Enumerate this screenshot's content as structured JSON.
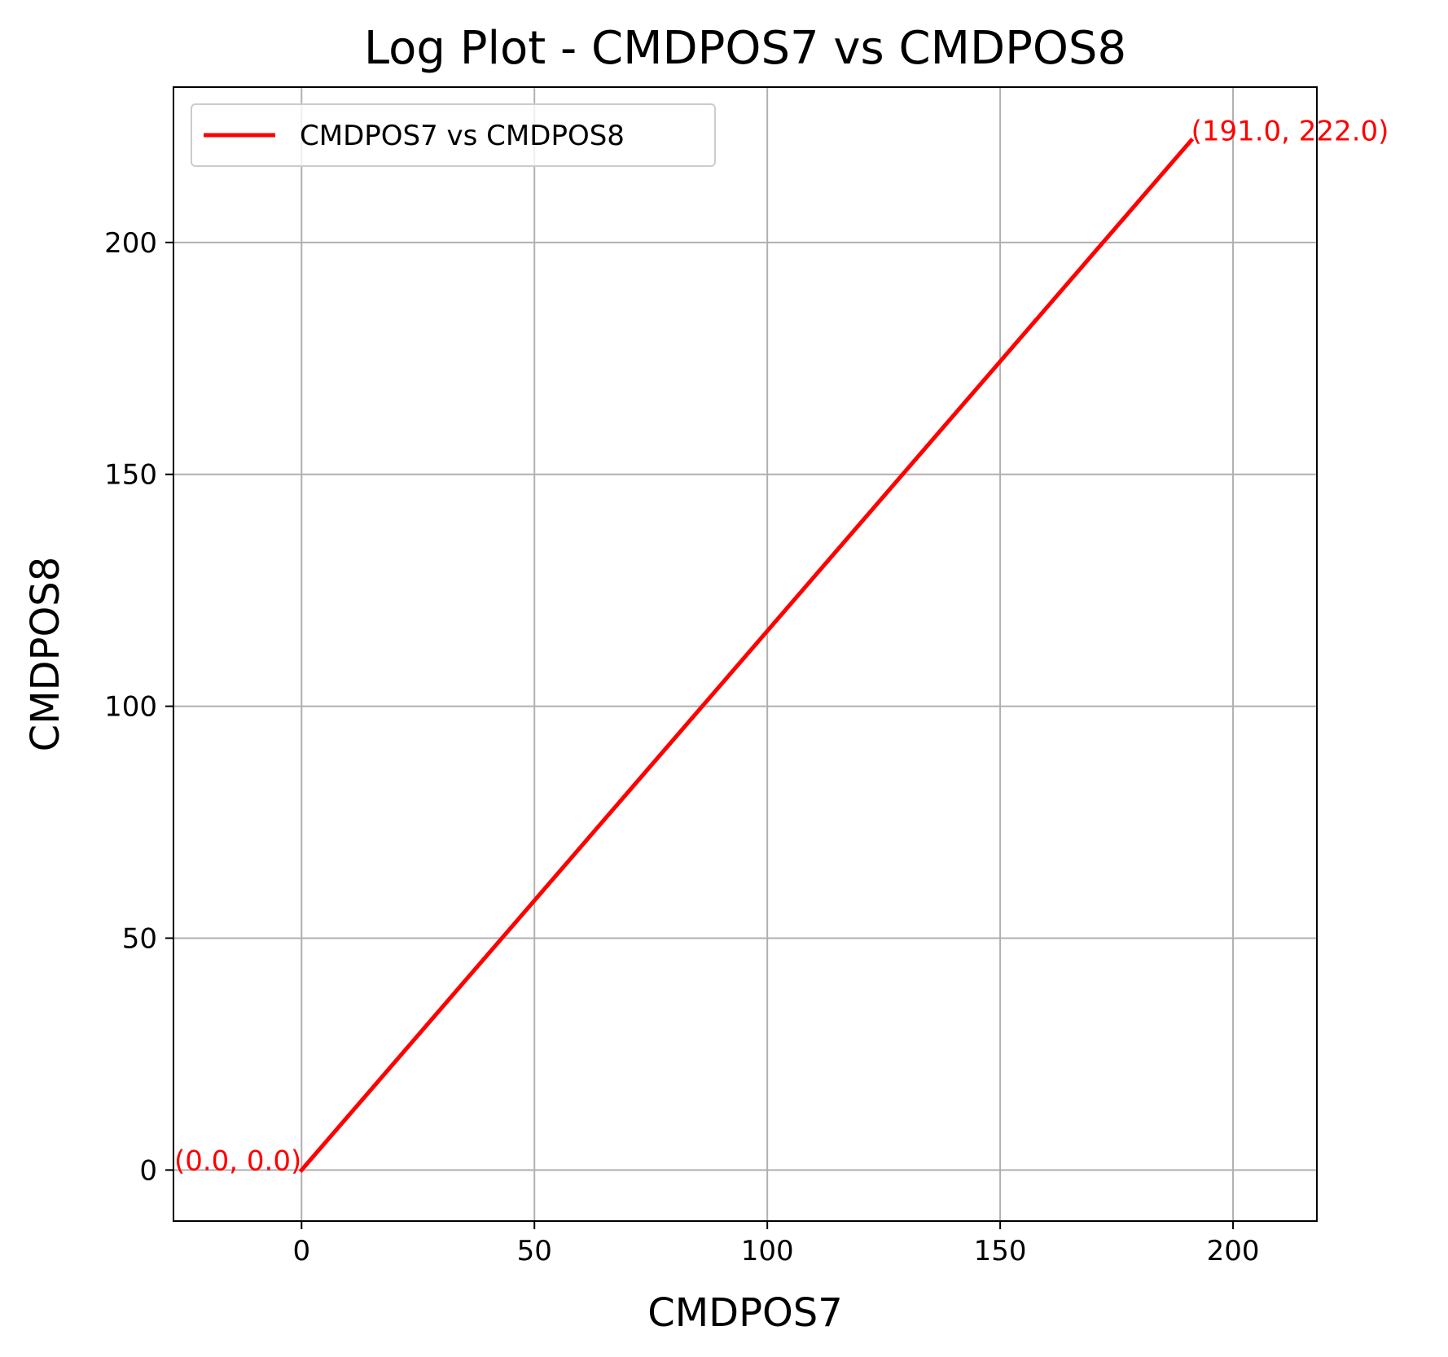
{
  "chart_data": {
    "type": "line",
    "title": "Log Plot - CMDPOS7 vs CMDPOS8",
    "xlabel": "CMDPOS7",
    "ylabel": "CMDPOS8",
    "xlim": [
      -27.5,
      218
    ],
    "ylim": [
      -11,
      233.5
    ],
    "xticks": [
      0,
      50,
      100,
      150,
      200
    ],
    "yticks": [
      0,
      50,
      100,
      150,
      200
    ],
    "grid": true,
    "legend_position": "upper-left",
    "series": [
      {
        "name": "CMDPOS7 vs CMDPOS8",
        "color": "#ff0000",
        "x": [
          0.0,
          191.0
        ],
        "y": [
          0.0,
          222.0
        ]
      }
    ],
    "annotations": [
      {
        "text": "(0.0, 0.0)",
        "x": 0.0,
        "y": 0.0,
        "color": "#ff0000",
        "anchor": "end"
      },
      {
        "text": "(191.0, 222.0)",
        "x": 191.0,
        "y": 222.0,
        "color": "#ff0000",
        "anchor": "start"
      }
    ]
  }
}
